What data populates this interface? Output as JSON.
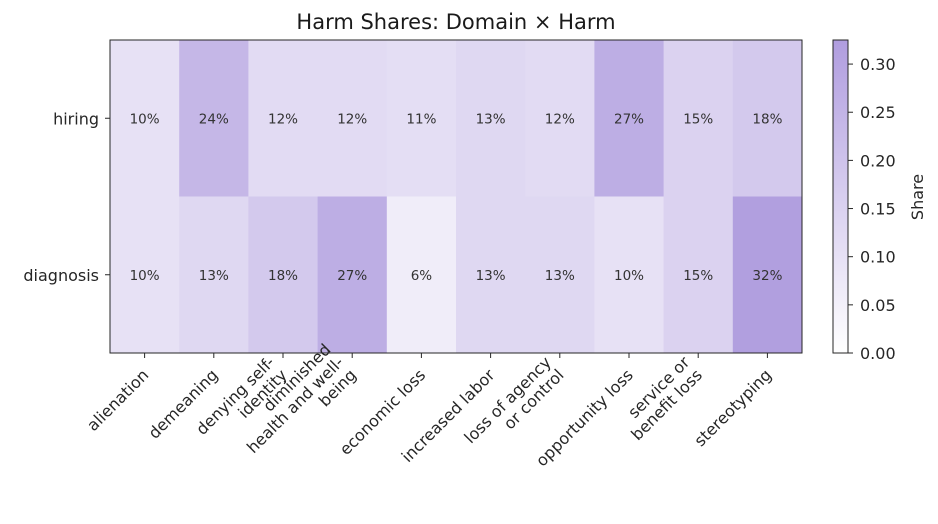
{
  "chart_data": {
    "type": "heatmap",
    "title": "Harm Shares: Domain × Harm",
    "rows": [
      "hiring",
      "diagnosis"
    ],
    "columns": [
      [
        "alienation"
      ],
      [
        "demeaning"
      ],
      [
        "denying self-",
        "identity"
      ],
      [
        "diminished",
        "health and well-",
        "being"
      ],
      [
        "economic loss"
      ],
      [
        "increased labor"
      ],
      [
        "loss of agency",
        "or control"
      ],
      [
        "opportunity loss"
      ],
      [
        "service or",
        "benefit loss"
      ],
      [
        "stereotyping"
      ]
    ],
    "values": [
      [
        0.1,
        0.24,
        0.12,
        0.12,
        0.11,
        0.13,
        0.12,
        0.27,
        0.15,
        0.18
      ],
      [
        0.1,
        0.13,
        0.18,
        0.27,
        0.06,
        0.13,
        0.13,
        0.1,
        0.15,
        0.32
      ]
    ],
    "cell_labels": [
      [
        "10%",
        "24%",
        "12%",
        "12%",
        "11%",
        "13%",
        "12%",
        "27%",
        "15%",
        "18%"
      ],
      [
        "10%",
        "13%",
        "18%",
        "27%",
        "6%",
        "13%",
        "13%",
        "10%",
        "15%",
        "32%"
      ]
    ],
    "colorbar": {
      "label": "Share",
      "range": [
        0,
        0.325
      ],
      "ticks": [
        "0.00",
        "0.05",
        "0.10",
        "0.15",
        "0.20",
        "0.25",
        "0.30"
      ],
      "tick_values": [
        0,
        0.05,
        0.1,
        0.15,
        0.2,
        0.25,
        0.3
      ],
      "color_low": "#ffffff",
      "color_high": "#b09ddf"
    }
  }
}
